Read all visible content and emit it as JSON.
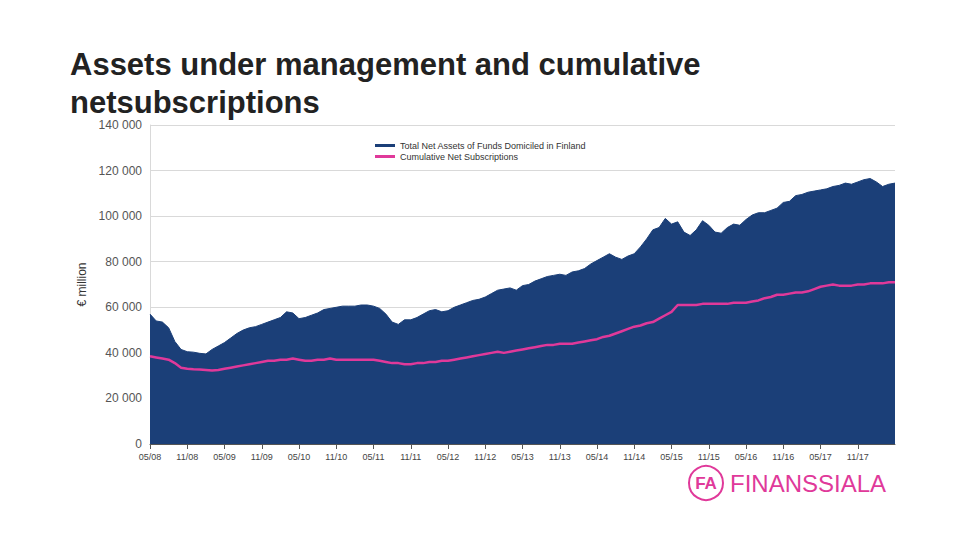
{
  "chart_data": {
    "type": "line",
    "title": "Assets under management and cumulative netsubscriptions",
    "y_label": "€ million",
    "logo_mark": "FA",
    "logo_text": "FINANSSIALA",
    "categories": [
      "05/08",
      null,
      null,
      null,
      null,
      null,
      "11/08",
      null,
      null,
      null,
      null,
      null,
      "05/09",
      null,
      null,
      null,
      null,
      null,
      "11/09",
      null,
      null,
      null,
      null,
      null,
      "05/10",
      null,
      null,
      null,
      null,
      null,
      "11/10",
      null,
      null,
      null,
      null,
      null,
      "05/11",
      null,
      null,
      null,
      null,
      null,
      "11/11",
      null,
      null,
      null,
      null,
      null,
      "05/12",
      null,
      null,
      null,
      null,
      null,
      "11/12",
      null,
      null,
      null,
      null,
      null,
      "05/13",
      null,
      null,
      null,
      null,
      null,
      "11/13",
      null,
      null,
      null,
      null,
      null,
      "05/14",
      null,
      null,
      null,
      null,
      null,
      "11/14",
      null,
      null,
      null,
      null,
      null,
      "05/15",
      null,
      null,
      null,
      null,
      null,
      "11/15",
      null,
      null,
      null,
      null,
      null,
      "05/16",
      null,
      null,
      null,
      null,
      null,
      "11/16",
      null,
      null,
      null,
      null,
      null,
      "05/17",
      null,
      null,
      null,
      null,
      null,
      "11/17",
      null,
      null,
      null,
      null,
      null,
      null
    ],
    "series": [
      {
        "name": "Total Net Assets of Funds Domiciled in Finland",
        "type": "area",
        "color": "#1b3f78",
        "values": [
          57000,
          54000,
          53500,
          51000,
          45000,
          41500,
          40500,
          40300,
          39800,
          39500,
          41500,
          43000,
          44500,
          46500,
          48500,
          50000,
          51000,
          51500,
          52500,
          53500,
          54500,
          55500,
          58000,
          57500,
          55000,
          55500,
          56500,
          57500,
          59000,
          59500,
          60000,
          60500,
          60500,
          60500,
          61000,
          61000,
          60500,
          59500,
          57000,
          53500,
          52500,
          54500,
          54500,
          55500,
          57000,
          58500,
          59000,
          58000,
          58500,
          60000,
          61000,
          62000,
          63000,
          63500,
          64500,
          66000,
          67500,
          68000,
          68500,
          67500,
          69500,
          70000,
          71500,
          72500,
          73500,
          74000,
          74500,
          74000,
          75500,
          76000,
          77000,
          79000,
          80500,
          82000,
          83500,
          82000,
          81000,
          82500,
          83500,
          86500,
          90000,
          94000,
          95000,
          99000,
          96500,
          97500,
          93000,
          91500,
          94000,
          98000,
          96000,
          93000,
          92500,
          95000,
          96500,
          96000,
          98500,
          100500,
          101500,
          101500,
          102500,
          103500,
          106000,
          106500,
          109000,
          109500,
          110500,
          111000,
          111500,
          112000,
          113000,
          113500,
          114500,
          114000,
          115000,
          116000,
          116500,
          115000,
          113000,
          114000,
          114500
        ]
      },
      {
        "name": "Cumulative Net Subscriptions",
        "type": "line",
        "color": "#e0399a",
        "values": [
          38500,
          38000,
          37500,
          37000,
          35500,
          33500,
          33000,
          32800,
          32700,
          32500,
          32300,
          32500,
          33000,
          33500,
          34000,
          34500,
          35000,
          35500,
          36000,
          36500,
          36500,
          37000,
          37000,
          37500,
          37000,
          36500,
          36500,
          37000,
          37000,
          37500,
          37000,
          37000,
          37000,
          37000,
          37000,
          37000,
          37000,
          36500,
          36000,
          35500,
          35500,
          35000,
          35000,
          35500,
          35500,
          36000,
          36000,
          36500,
          36500,
          37000,
          37500,
          38000,
          38500,
          39000,
          39500,
          40000,
          40500,
          40000,
          40500,
          41000,
          41500,
          42000,
          42500,
          43000,
          43500,
          43500,
          44000,
          44000,
          44000,
          44500,
          45000,
          45500,
          46000,
          47000,
          47500,
          48500,
          49500,
          50500,
          51500,
          52000,
          53000,
          53500,
          55000,
          56500,
          58000,
          61000,
          61000,
          61000,
          61000,
          61500,
          61500,
          61500,
          61500,
          61500,
          62000,
          62000,
          62000,
          62500,
          63000,
          64000,
          64500,
          65500,
          65500,
          66000,
          66500,
          66500,
          67000,
          68000,
          69000,
          69500,
          70000,
          69500,
          69500,
          69500,
          70000,
          70000,
          70500,
          70500,
          70500,
          71000,
          71000
        ]
      }
    ],
    "ylim": [
      0,
      140000
    ],
    "yticks": [
      0,
      {
        "value": 20000,
        "label": "20 000"
      },
      {
        "value": 40000,
        "label": "40 000"
      },
      {
        "value": 60000,
        "label": "60 000"
      },
      {
        "value": 80000,
        "label": "80 000"
      },
      {
        "value": 100000,
        "label": "100 000"
      },
      {
        "value": 120000,
        "label": "120 000"
      },
      {
        "value": 140000,
        "label": "140 000"
      }
    ],
    "grid": true,
    "legend": "top"
  }
}
